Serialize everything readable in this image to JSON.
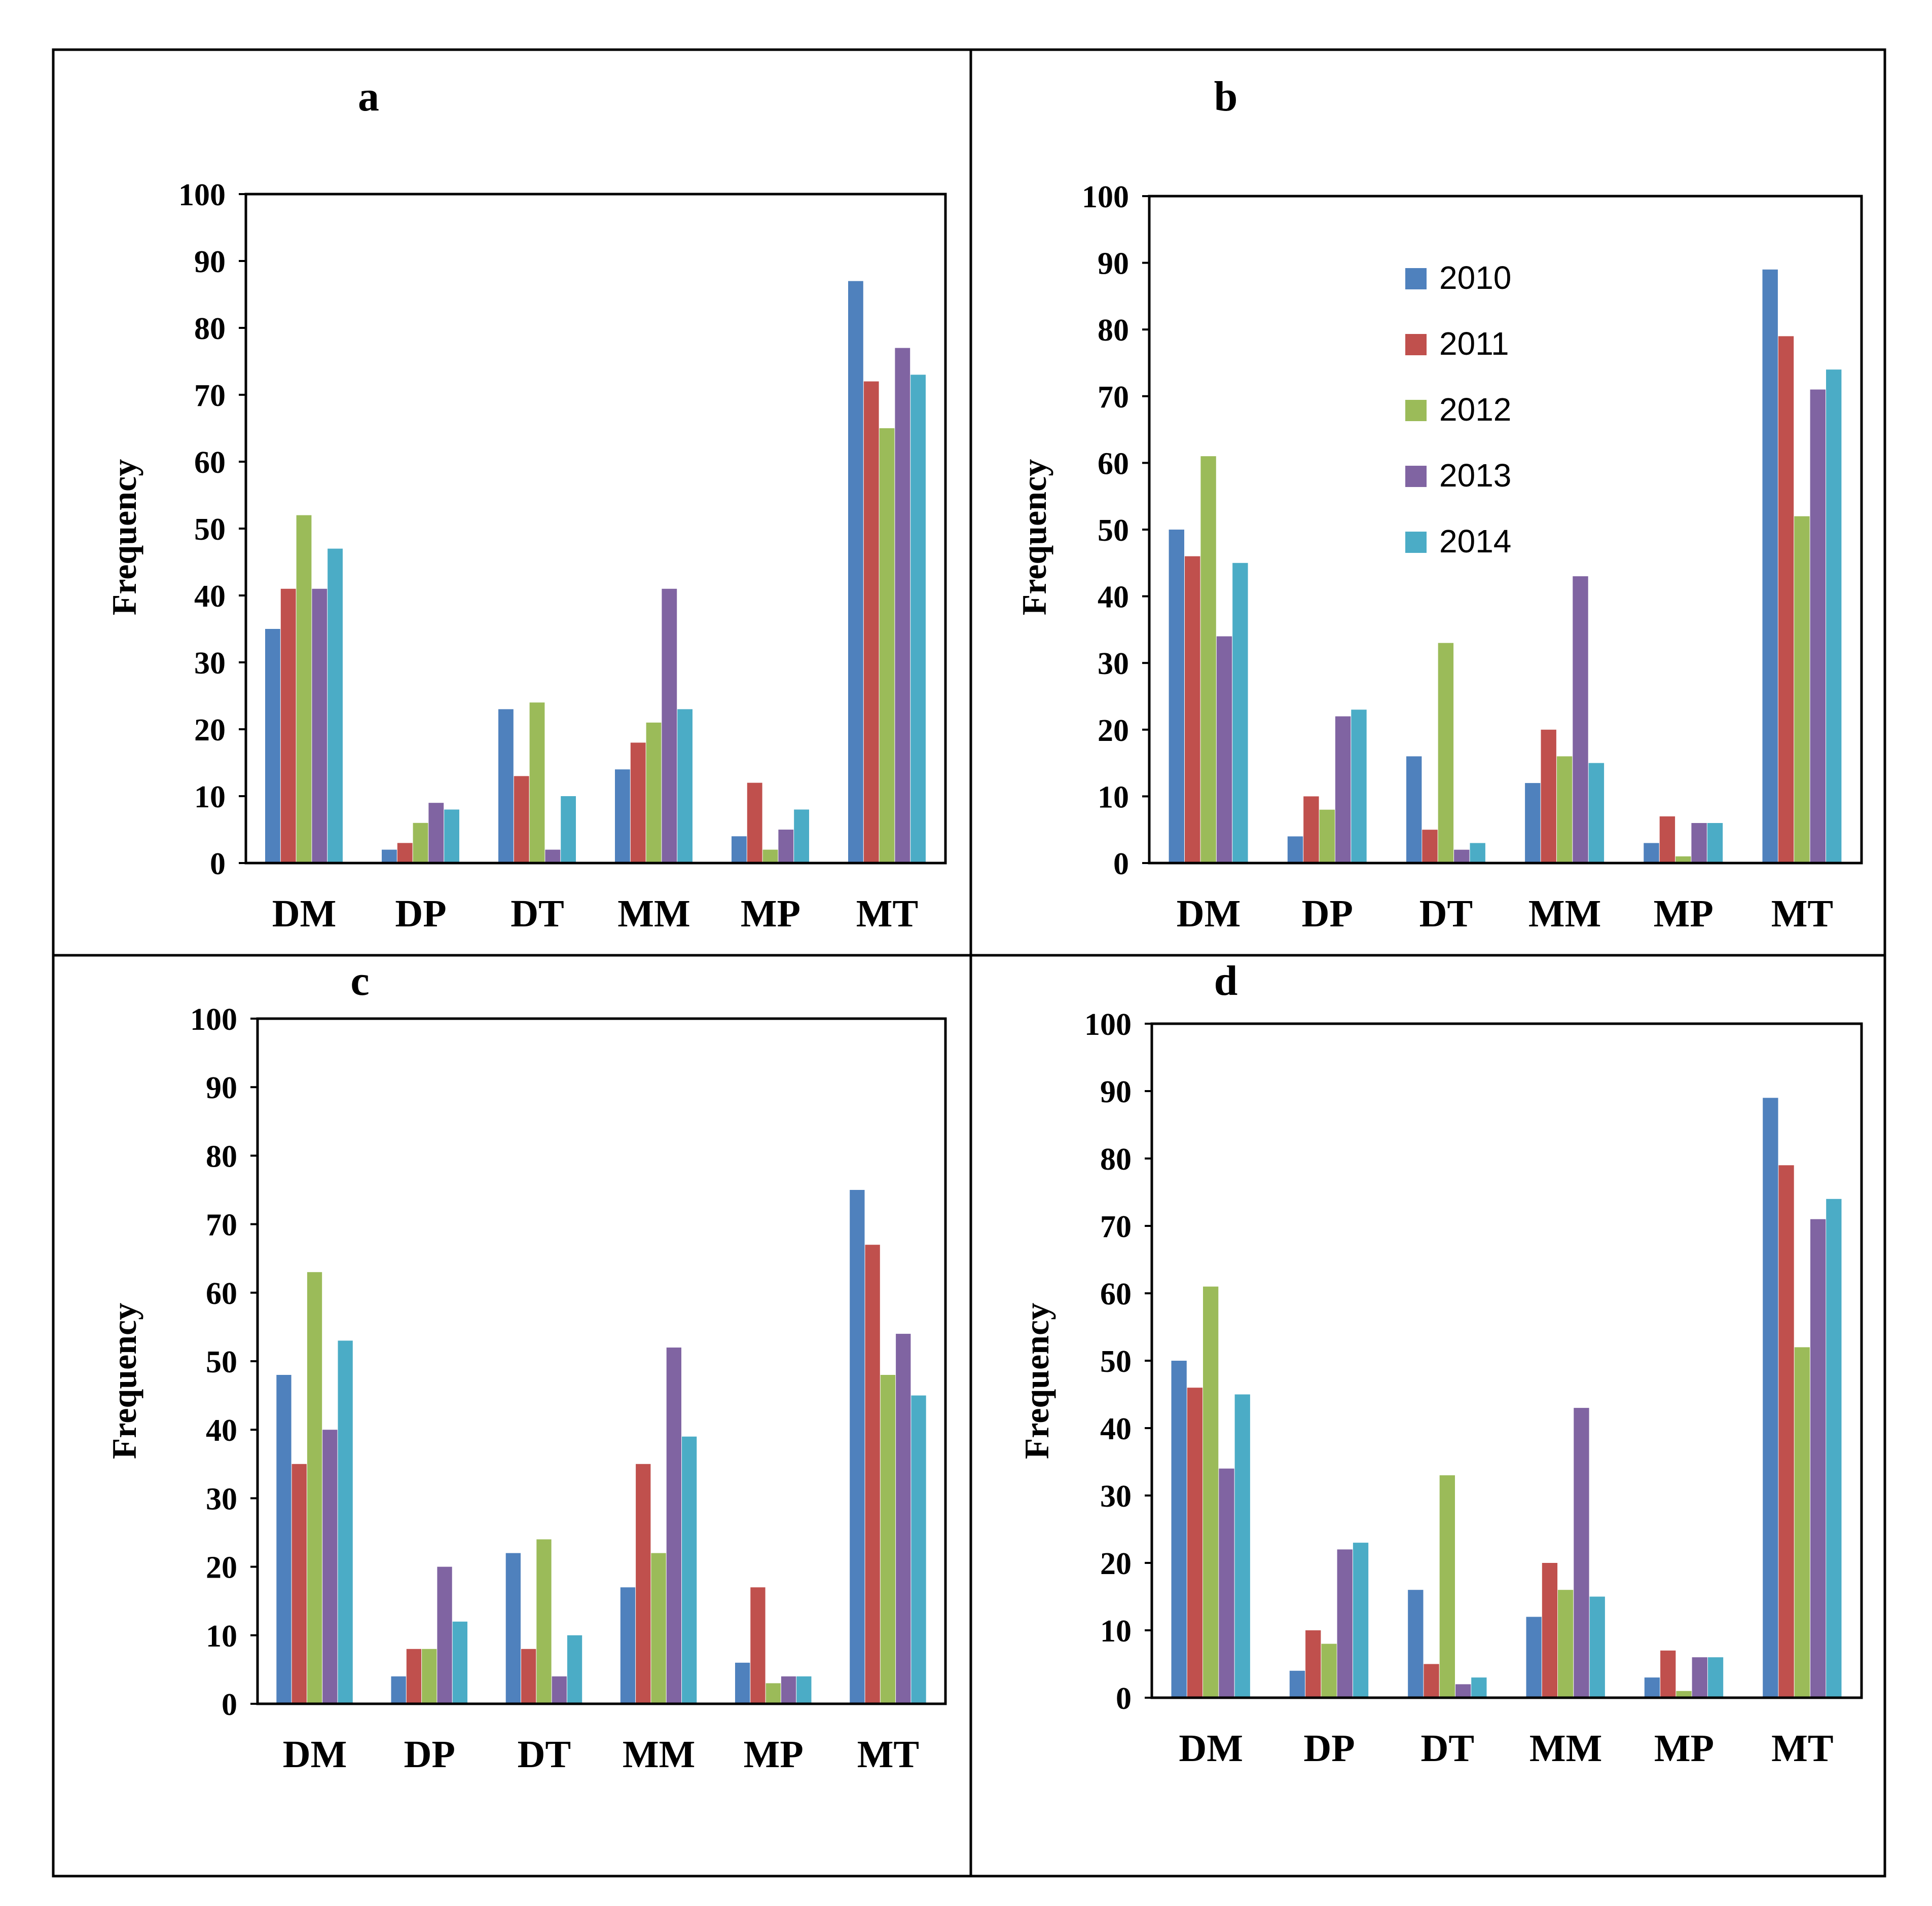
{
  "colors": {
    "2010": "#4f81bd",
    "2011": "#c0504d",
    "2012": "#9bbb59",
    "2013": "#8064a2",
    "2014": "#4bacc6"
  },
  "chart_data": [
    {
      "type": "bar",
      "panel": "a",
      "title": "a",
      "xlabel": "",
      "ylabel": "Frequency",
      "ylim": [
        0,
        100
      ],
      "yticks": [
        "0",
        "10",
        "20",
        "30",
        "40",
        "50",
        "60",
        "70",
        "80",
        "90",
        "100"
      ],
      "categories": [
        "DM",
        "DP",
        "DT",
        "MM",
        "MP",
        "MT"
      ],
      "series": [
        {
          "name": "2010",
          "values": [
            35,
            2,
            23,
            14,
            4,
            87
          ]
        },
        {
          "name": "2011",
          "values": [
            41,
            3,
            13,
            18,
            12,
            72
          ]
        },
        {
          "name": "2012",
          "values": [
            52,
            6,
            24,
            21,
            2,
            65
          ]
        },
        {
          "name": "2013",
          "values": [
            41,
            9,
            2,
            41,
            5,
            77
          ]
        },
        {
          "name": "2014",
          "values": [
            47,
            8,
            10,
            23,
            8,
            73
          ]
        }
      ]
    },
    {
      "type": "bar",
      "panel": "b",
      "title": "b",
      "xlabel": "",
      "ylabel": "Frequency",
      "ylim": [
        0,
        100
      ],
      "yticks": [
        "0",
        "10",
        "20",
        "30",
        "40",
        "50",
        "60",
        "70",
        "80",
        "90",
        "100"
      ],
      "categories": [
        "DM",
        "DP",
        "DT",
        "MM",
        "MP",
        "MT"
      ],
      "legend": [
        "2010",
        "2011",
        "2012",
        "2013",
        "2014"
      ],
      "series": [
        {
          "name": "2010",
          "values": [
            50,
            4,
            16,
            12,
            3,
            89
          ]
        },
        {
          "name": "2011",
          "values": [
            46,
            10,
            5,
            20,
            7,
            79
          ]
        },
        {
          "name": "2012",
          "values": [
            61,
            8,
            33,
            16,
            1,
            52
          ]
        },
        {
          "name": "2013",
          "values": [
            34,
            22,
            2,
            43,
            6,
            71
          ]
        },
        {
          "name": "2014",
          "values": [
            45,
            23,
            3,
            15,
            6,
            74
          ]
        }
      ]
    },
    {
      "type": "bar",
      "panel": "c",
      "title": "c",
      "xlabel": "",
      "ylabel": "Frequency",
      "ylim": [
        0,
        100
      ],
      "yticks": [
        "0",
        "10",
        "20",
        "30",
        "40",
        "50",
        "60",
        "70",
        "80",
        "90",
        "100"
      ],
      "categories": [
        "DM",
        "DP",
        "DT",
        "MM",
        "MP",
        "MT"
      ],
      "series": [
        {
          "name": "2010",
          "values": [
            48,
            4,
            22,
            17,
            6,
            75
          ]
        },
        {
          "name": "2011",
          "values": [
            35,
            8,
            8,
            35,
            17,
            67
          ]
        },
        {
          "name": "2012",
          "values": [
            63,
            8,
            24,
            22,
            3,
            48
          ]
        },
        {
          "name": "2013",
          "values": [
            40,
            20,
            4,
            52,
            4,
            54
          ]
        },
        {
          "name": "2014",
          "values": [
            53,
            12,
            10,
            39,
            4,
            45
          ]
        }
      ]
    },
    {
      "type": "bar",
      "panel": "d",
      "title": "d",
      "xlabel": "",
      "ylabel": "Frequency",
      "ylim": [
        0,
        100
      ],
      "yticks": [
        "0",
        "10",
        "20",
        "30",
        "40",
        "50",
        "60",
        "70",
        "80",
        "90",
        "100"
      ],
      "categories": [
        "DM",
        "DP",
        "DT",
        "MM",
        "MP",
        "MT"
      ],
      "series": [
        {
          "name": "2010",
          "values": [
            50,
            4,
            16,
            12,
            3,
            89
          ]
        },
        {
          "name": "2011",
          "values": [
            46,
            10,
            5,
            20,
            7,
            79
          ]
        },
        {
          "name": "2012",
          "values": [
            61,
            8,
            33,
            16,
            1,
            52
          ]
        },
        {
          "name": "2013",
          "values": [
            34,
            22,
            2,
            43,
            6,
            71
          ]
        },
        {
          "name": "2014",
          "values": [
            45,
            23,
            3,
            15,
            6,
            74
          ]
        }
      ]
    }
  ]
}
